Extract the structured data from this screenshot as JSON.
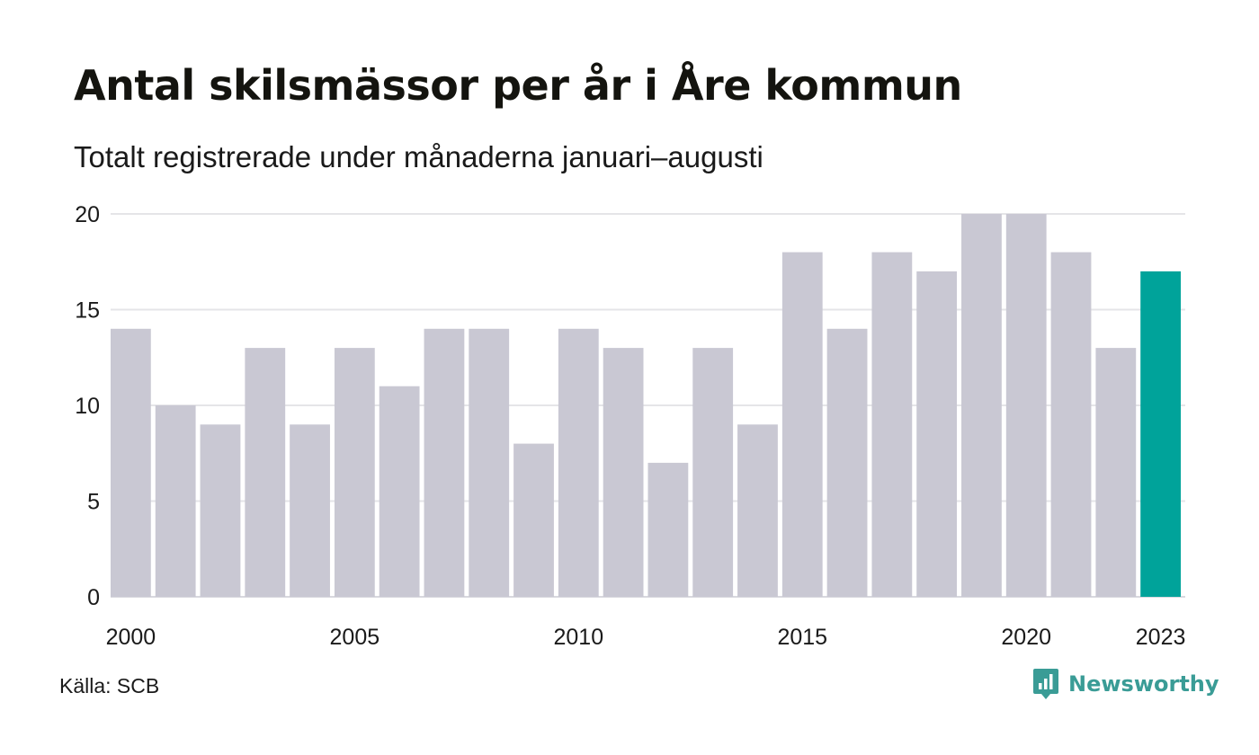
{
  "title": "Antal skilsmässor per år i Åre kommun",
  "subtitle": "Totalt registrerade under månaderna januari–augusti",
  "source": "Källa: SCB",
  "brand": {
    "name": "Newsworthy",
    "icon": "newsworthy-logo-icon",
    "color": "#3a9c96"
  },
  "chart_data": {
    "type": "bar",
    "categories": [
      "2000",
      "2001",
      "2002",
      "2003",
      "2004",
      "2005",
      "2006",
      "2007",
      "2008",
      "2009",
      "2010",
      "2011",
      "2012",
      "2013",
      "2014",
      "2015",
      "2016",
      "2017",
      "2018",
      "2019",
      "2020",
      "2021",
      "2022",
      "2023"
    ],
    "values": [
      14,
      10,
      9,
      13,
      9,
      13,
      11,
      14,
      14,
      8,
      14,
      13,
      7,
      13,
      9,
      18,
      14,
      18,
      17,
      20,
      20,
      18,
      13,
      17
    ],
    "x_tick_labels": [
      "2000",
      "2005",
      "2010",
      "2015",
      "2020",
      "2023"
    ],
    "y_ticks": [
      0,
      5,
      10,
      15,
      20
    ],
    "ylim": [
      0,
      20
    ],
    "grid": true,
    "highlight_category": "2023",
    "colors": {
      "bar": "#c9c8d3",
      "highlight": "#00a39a",
      "grid": "#e5e5e8",
      "baseline": "#d8d8de"
    }
  }
}
